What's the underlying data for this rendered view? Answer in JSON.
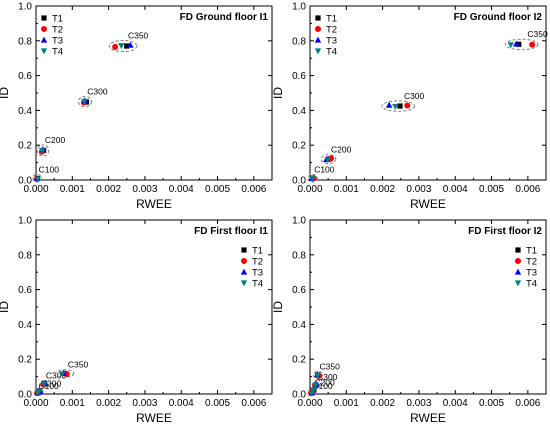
{
  "colors": {
    "T1": "#000000",
    "T2": "#ff0000",
    "T3": "#0000ff",
    "T4": "#008080",
    "ellipse": "#808080",
    "axis": "#000000"
  },
  "chart_data": [
    {
      "type": "scatter",
      "title": "FD Ground floor I1",
      "xlabel": "RWEE",
      "ylabel": "ID",
      "xlim": [
        0,
        0.0065
      ],
      "ylim": [
        0,
        1.0
      ],
      "xticks": [
        "0.000",
        "0.001",
        "0.002",
        "0.003",
        "0.004",
        "0.005",
        "0.006"
      ],
      "yticks": [
        "0.0",
        "0.2",
        "0.4",
        "0.6",
        "0.8",
        "1.0"
      ],
      "legend": "top-left",
      "grid": false,
      "series": [
        {
          "name": "T1",
          "marker": "square",
          "x": [
            4e-05,
            0.00021,
            0.00139,
            0.0025
          ],
          "y": [
            0.008,
            0.17,
            0.448,
            0.77
          ]
        },
        {
          "name": "T2",
          "marker": "circle",
          "x": [
            2e-05,
            0.00016,
            0.00132,
            0.00218
          ],
          "y": [
            0.007,
            0.162,
            0.445,
            0.765
          ]
        },
        {
          "name": "T3",
          "marker": "triangle-up",
          "x": [
            3e-05,
            0.00019,
            0.00135,
            0.0026
          ],
          "y": [
            0.009,
            0.175,
            0.455,
            0.775
          ]
        },
        {
          "name": "T4",
          "marker": "triangle-down",
          "x": [
            5e-05,
            0.00017,
            0.00133,
            0.00235
          ],
          "y": [
            0.006,
            0.168,
            0.452,
            0.772
          ]
        }
      ],
      "annotations": [
        {
          "text": "C100",
          "x": 3e-05,
          "y": 0.01,
          "rx": 0.00012,
          "ry": 0.022
        },
        {
          "text": "C200",
          "x": 0.00019,
          "y": 0.17,
          "rx": 0.00016,
          "ry": 0.032
        },
        {
          "text": "C300",
          "x": 0.00135,
          "y": 0.45,
          "rx": 0.00018,
          "ry": 0.03
        },
        {
          "text": "C350",
          "x": 0.0024,
          "y": 0.77,
          "rx": 0.00038,
          "ry": 0.032
        }
      ]
    },
    {
      "type": "scatter",
      "title": "FD Ground floor I2",
      "xlabel": "RWEE",
      "ylabel": "ID",
      "xlim": [
        0,
        0.0065
      ],
      "ylim": [
        0,
        1.0
      ],
      "xticks": [
        "0.000",
        "0.001",
        "0.002",
        "0.003",
        "0.004",
        "0.005",
        "0.006"
      ],
      "yticks": [
        "0.0",
        "0.2",
        "0.4",
        "0.6",
        "0.8",
        "1.0"
      ],
      "legend": "top-left",
      "grid": false,
      "series": [
        {
          "name": "T1",
          "marker": "square",
          "x": [
            7e-05,
            0.00052,
            0.00248,
            0.00575
          ],
          "y": [
            0.01,
            0.12,
            0.425,
            0.78
          ]
        },
        {
          "name": "T2",
          "marker": "circle",
          "x": [
            0.0001,
            0.00058,
            0.00268,
            0.00612
          ],
          "y": [
            0.011,
            0.124,
            0.428,
            0.778
          ]
        },
        {
          "name": "T3",
          "marker": "triangle-up",
          "x": [
            4e-05,
            0.00045,
            0.00218,
            0.00568
          ],
          "y": [
            0.009,
            0.118,
            0.43,
            0.782
          ]
        },
        {
          "name": "T4",
          "marker": "triangle-down",
          "x": [
            6e-05,
            0.00049,
            0.00235,
            0.00553
          ],
          "y": [
            0.008,
            0.116,
            0.422,
            0.777
          ]
        }
      ],
      "annotations": [
        {
          "text": "C100",
          "x": 7e-05,
          "y": 0.01,
          "rx": 0.00013,
          "ry": 0.022
        },
        {
          "text": "C200",
          "x": 0.00051,
          "y": 0.12,
          "rx": 0.0002,
          "ry": 0.026
        },
        {
          "text": "C300",
          "x": 0.00243,
          "y": 0.425,
          "rx": 0.00045,
          "ry": 0.03
        },
        {
          "text": "C350",
          "x": 0.00583,
          "y": 0.779,
          "rx": 0.00045,
          "ry": 0.03
        }
      ]
    },
    {
      "type": "scatter",
      "title": "FD First floor I1",
      "xlabel": "RWEE",
      "ylabel": "ID",
      "xlim": [
        0,
        0.0065
      ],
      "ylim": [
        0,
        1.0
      ],
      "xticks": [
        "0.000",
        "0.001",
        "0.002",
        "0.003",
        "0.004",
        "0.005",
        "0.006"
      ],
      "yticks": [
        "0.0",
        "0.2",
        "0.4",
        "0.6",
        "0.8",
        "1.0"
      ],
      "legend": "top-right",
      "grid": false,
      "series": [
        {
          "name": "T1",
          "marker": "square",
          "x": [
            4e-05,
            0.0001,
            0.00023,
            0.0008
          ],
          "y": [
            0.006,
            0.018,
            0.058,
            0.118
          ]
        },
        {
          "name": "T2",
          "marker": "circle",
          "x": [
            3e-05,
            8e-05,
            0.0002,
            0.00085
          ],
          "y": [
            0.005,
            0.016,
            0.055,
            0.115
          ]
        },
        {
          "name": "T3",
          "marker": "triangle-up",
          "x": [
            5e-05,
            0.00011,
            0.00026,
            0.00076
          ],
          "y": [
            0.007,
            0.02,
            0.062,
            0.12
          ]
        },
        {
          "name": "T4",
          "marker": "triangle-down",
          "x": [
            4e-05,
            9e-05,
            0.00022,
            0.00072
          ],
          "y": [
            0.005,
            0.017,
            0.057,
            0.116
          ]
        }
      ],
      "annotations": [
        {
          "text": "C100",
          "x": 4e-05,
          "y": 0.006,
          "rx": 8e-05,
          "ry": 0.012
        },
        {
          "text": "C200",
          "x": 0.0001,
          "y": 0.018,
          "rx": 0.0001,
          "ry": 0.015
        },
        {
          "text": "C300",
          "x": 0.00023,
          "y": 0.058,
          "rx": 0.00012,
          "ry": 0.02
        },
        {
          "text": "C350",
          "x": 0.00079,
          "y": 0.118,
          "rx": 0.00025,
          "ry": 0.022
        }
      ]
    },
    {
      "type": "scatter",
      "title": "FD First floor I2",
      "xlabel": "RWEE",
      "ylabel": "ID",
      "xlim": [
        0,
        0.0065
      ],
      "ylim": [
        0,
        1.0
      ],
      "xticks": [
        "0.000",
        "0.001",
        "0.002",
        "0.003",
        "0.004",
        "0.005",
        "0.006"
      ],
      "yticks": [
        "0.0",
        "0.2",
        "0.4",
        "0.6",
        "0.8",
        "1.0"
      ],
      "legend": "top-right",
      "grid": false,
      "series": [
        {
          "name": "T1",
          "marker": "square",
          "x": [
            4e-05,
            9e-05,
            0.00016,
            0.00022
          ],
          "y": [
            0.006,
            0.022,
            0.052,
            0.108
          ]
        },
        {
          "name": "T2",
          "marker": "circle",
          "x": [
            3e-05,
            8e-05,
            0.00014,
            0.00025
          ],
          "y": [
            0.005,
            0.02,
            0.049,
            0.104
          ]
        },
        {
          "name": "T3",
          "marker": "triangle-up",
          "x": [
            5e-05,
            0.0001,
            0.00018,
            0.0002
          ],
          "y": [
            0.007,
            0.024,
            0.055,
            0.112
          ]
        },
        {
          "name": "T4",
          "marker": "triangle-down",
          "x": [
            4e-05,
            9e-05,
            0.00015,
            0.00021
          ],
          "y": [
            0.005,
            0.021,
            0.051,
            0.106
          ]
        }
      ],
      "annotations": [
        {
          "text": "C100",
          "x": 4e-05,
          "y": 0.006,
          "rx": 7e-05,
          "ry": 0.012
        },
        {
          "text": "C200",
          "x": 9e-05,
          "y": 0.022,
          "rx": 9e-05,
          "ry": 0.014
        },
        {
          "text": "C300",
          "x": 0.00016,
          "y": 0.052,
          "rx": 0.0001,
          "ry": 0.018
        },
        {
          "text": "C350",
          "x": 0.00022,
          "y": 0.108,
          "rx": 0.00012,
          "ry": 0.022
        }
      ]
    }
  ]
}
